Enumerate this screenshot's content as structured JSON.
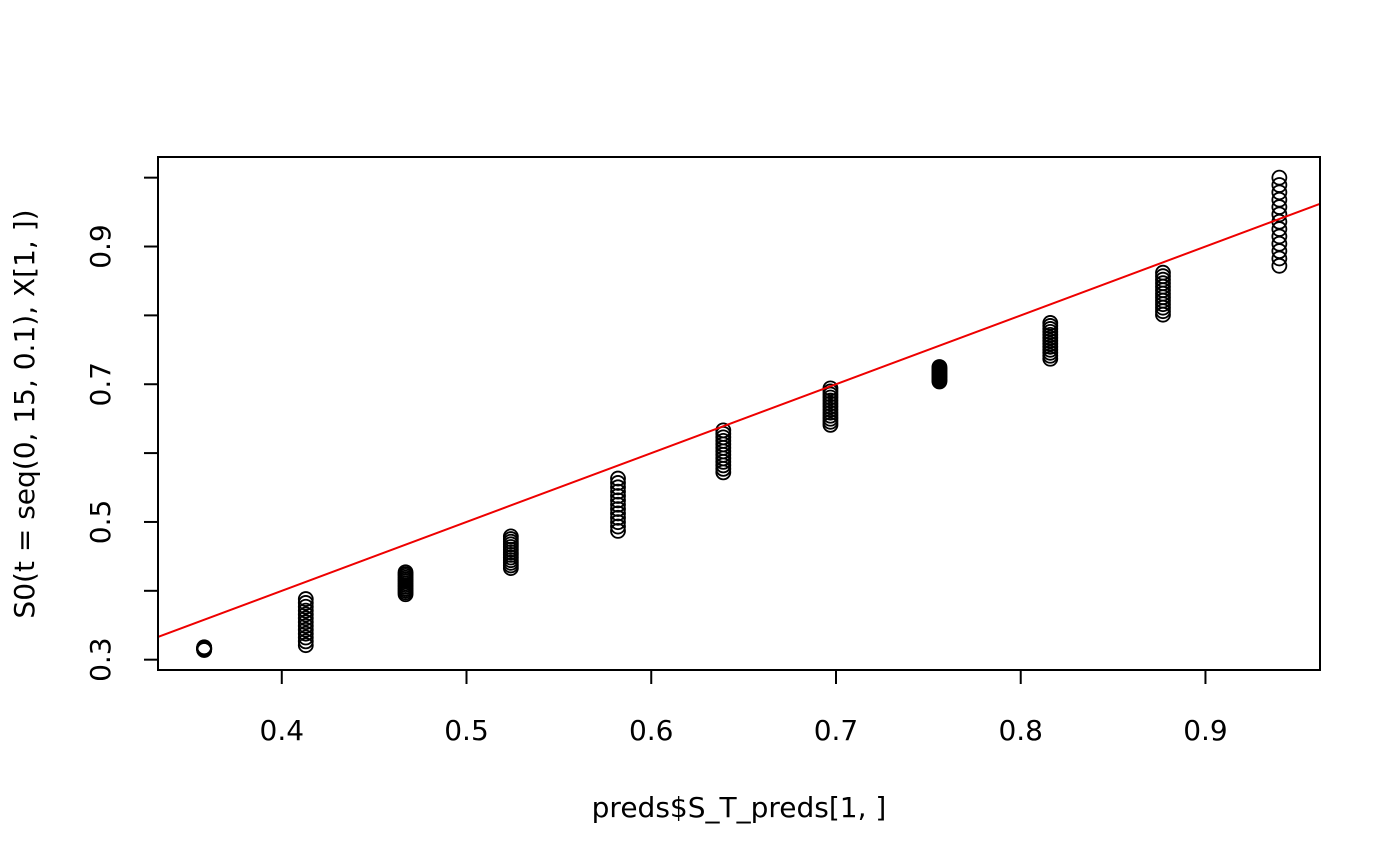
{
  "chart_data": {
    "type": "scatter",
    "title": "",
    "xlabel": "preds$S_T_preds[1, ]",
    "ylabel": "S0(t = seq(0, 15, 0.1), X[1, ])",
    "xlim": [
      0.333,
      0.962
    ],
    "ylim": [
      0.285,
      1.03
    ],
    "x_ticks": [
      0.4,
      0.5,
      0.6,
      0.7,
      0.8,
      0.9
    ],
    "x_tick_labels": [
      "0.4",
      "0.5",
      "0.6",
      "0.7",
      "0.8",
      "0.9"
    ],
    "y_ticks": [
      0.3,
      0.4,
      0.5,
      0.6,
      0.7,
      0.8,
      0.9,
      1.0
    ],
    "y_tick_labels": [
      "0.3",
      "",
      "0.5",
      "",
      "0.7",
      "",
      "0.9",
      ""
    ],
    "grid": false,
    "legend": "none",
    "point_shape": "open-circle",
    "point_color": "#000000",
    "reference_line": {
      "type": "abline",
      "intercept": 0,
      "slope": 1,
      "color": "#ee0000"
    },
    "groups": [
      {
        "x": 0.358,
        "y_min": 0.314,
        "y_max": 0.318
      },
      {
        "x": 0.413,
        "y_min": 0.321,
        "y_max": 0.388
      },
      {
        "x": 0.467,
        "y_min": 0.395,
        "y_max": 0.427
      },
      {
        "x": 0.524,
        "y_min": 0.433,
        "y_max": 0.479
      },
      {
        "x": 0.582,
        "y_min": 0.487,
        "y_max": 0.563
      },
      {
        "x": 0.639,
        "y_min": 0.572,
        "y_max": 0.633
      },
      {
        "x": 0.697,
        "y_min": 0.641,
        "y_max": 0.694
      },
      {
        "x": 0.756,
        "y_min": 0.704,
        "y_max": 0.725
      },
      {
        "x": 0.816,
        "y_min": 0.737,
        "y_max": 0.789
      },
      {
        "x": 0.877,
        "y_min": 0.801,
        "y_max": 0.862
      },
      {
        "x": 0.94,
        "y_min": 0.872,
        "y_max": 1.0
      }
    ],
    "points_per_group": 13
  }
}
